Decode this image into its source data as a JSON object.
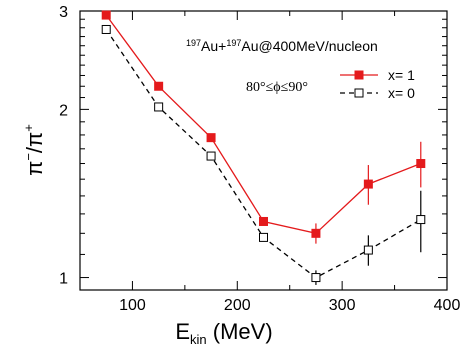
{
  "chart_data": {
    "type": "line",
    "title": "",
    "xlabel": {
      "main": "E",
      "sub": "kin",
      "unit": " (MeV)"
    },
    "ylabel": {
      "pi1": "π",
      "sup1": "−",
      "slash": "/",
      "pi2": "π",
      "sup2": "+"
    },
    "xlim": [
      50,
      400
    ],
    "ylim": [
      0.95,
      3.0
    ],
    "yscale": "log",
    "x_ticks": [
      "100",
      "200",
      "300",
      "400"
    ],
    "y_ticks": [
      "1",
      "2",
      "3"
    ],
    "grid": false,
    "legend_position": "top-right",
    "annotation": {
      "a_sup": "197",
      "a_text": "Au+",
      "b_sup": "197",
      "b_text": "Au@400MeV/nucleon",
      "cut": "80°≤ϕ≤90°"
    },
    "x": [
      75,
      125,
      175,
      225,
      275,
      325,
      375
    ],
    "series": [
      {
        "name": "x= 1",
        "color": "#e41a1c",
        "marker": "filled-square",
        "line": "solid",
        "values": [
          2.95,
          2.2,
          1.78,
          1.26,
          1.2,
          1.47,
          1.6
        ],
        "errors": [
          0,
          0,
          0,
          0,
          0.05,
          0.12,
          0.15
        ]
      },
      {
        "name": "x= 0",
        "color": "#000000",
        "marker": "open-square",
        "line": "dashed",
        "values": [
          2.78,
          2.02,
          1.65,
          1.18,
          1.0,
          1.12,
          1.27
        ],
        "errors": [
          0,
          0,
          0,
          0,
          0.03,
          0.07,
          0.16
        ]
      }
    ]
  }
}
